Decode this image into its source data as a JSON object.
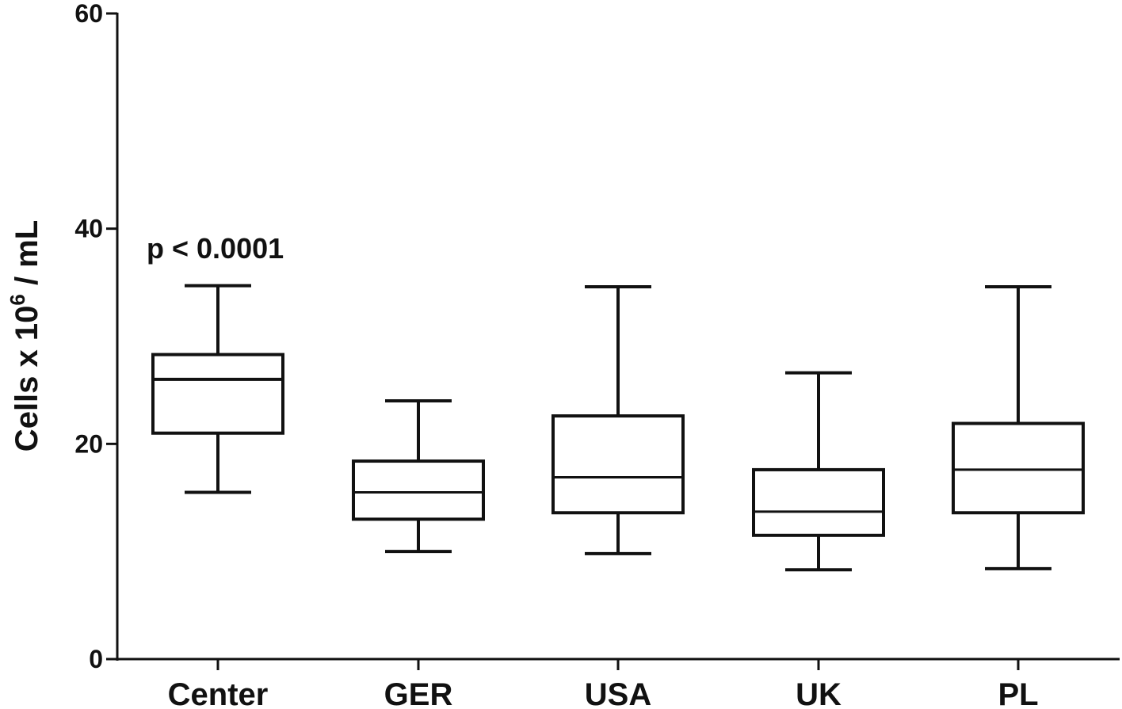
{
  "chart_data": {
    "type": "boxplot",
    "title": "",
    "xlabel": "",
    "ylabel": {
      "prefix": "Cells x 10",
      "superscript": "6",
      "suffix": " / mL"
    },
    "ylim": [
      0,
      60
    ],
    "yticks": [
      "0",
      "20",
      "40",
      "60"
    ],
    "grid": false,
    "categories": [
      "Center",
      "GER",
      "USA",
      "UK",
      "PL"
    ],
    "boxes": [
      {
        "name": "Center",
        "min": 15.5,
        "q1": 21.0,
        "median": 26.0,
        "q3": 28.3,
        "max": 34.7
      },
      {
        "name": "GER",
        "min": 10.0,
        "q1": 13.0,
        "median": 15.5,
        "q3": 18.4,
        "max": 24.0
      },
      {
        "name": "USA",
        "min": 9.8,
        "q1": 13.6,
        "median": 16.9,
        "q3": 22.6,
        "max": 34.6
      },
      {
        "name": "UK",
        "min": 8.3,
        "q1": 11.5,
        "median": 13.7,
        "q3": 17.6,
        "max": 26.6
      },
      {
        "name": "PL",
        "min": 8.4,
        "q1": 13.6,
        "median": 17.6,
        "q3": 21.9,
        "max": 34.6
      }
    ],
    "annotations": [
      {
        "text": "p < 0.0001",
        "category": "Center"
      }
    ]
  }
}
